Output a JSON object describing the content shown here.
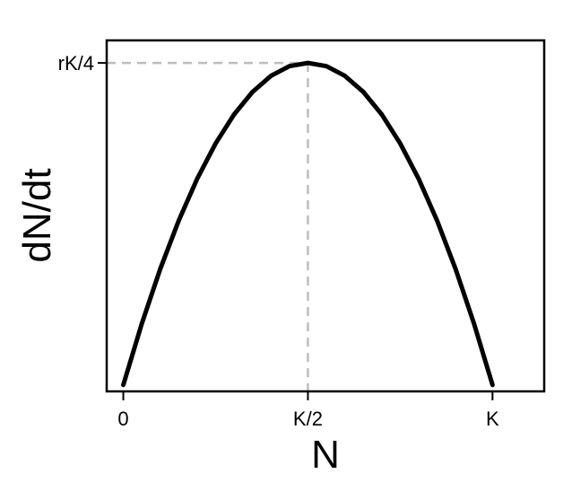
{
  "chart_data": {
    "type": "line",
    "title": "",
    "xlabel": "N",
    "ylabel": "dN/dt",
    "x_ticks": [
      {
        "value": 0,
        "label": "0"
      },
      {
        "value": 0.5,
        "label": "K/2"
      },
      {
        "value": 1,
        "label": "K"
      }
    ],
    "y_ticks": [
      {
        "value": 0.25,
        "label": "rK/4"
      }
    ],
    "xlim": [
      -0.045,
      1.14
    ],
    "ylim": [
      -0.005,
      0.2675
    ],
    "grid": false,
    "series": [
      {
        "color": "#000000",
        "x": [
          0,
          0.05,
          0.1,
          0.15,
          0.2,
          0.25,
          0.3,
          0.35,
          0.4,
          0.45,
          0.5,
          0.55,
          0.6,
          0.65,
          0.7,
          0.75,
          0.8,
          0.85,
          0.9,
          0.95,
          1
        ],
        "y": [
          0,
          0.0475,
          0.09,
          0.1275,
          0.16,
          0.1875,
          0.21,
          0.2275,
          0.24,
          0.2475,
          0.25,
          0.2475,
          0.24,
          0.2275,
          0.21,
          0.1875,
          0.16,
          0.1275,
          0.09,
          0.0475,
          0
        ]
      }
    ],
    "reference_lines": {
      "peak_x": 0.5,
      "peak_y": 0.25,
      "color": "#bdbdbd"
    }
  }
}
